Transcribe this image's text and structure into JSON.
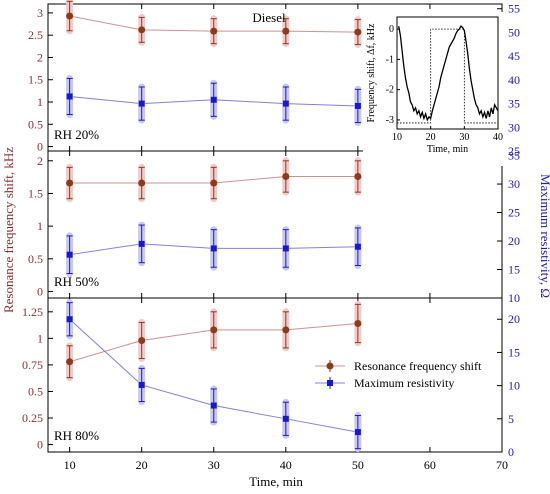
{
  "colors": {
    "resonance": "#8b3a1a",
    "resonance_line": "#d09090",
    "resonance_glow": "#f3caca",
    "resistivity": "#1818d0",
    "resistivity_line": "#8080e0",
    "resistivity_glow": "#c8c8f0",
    "left_axis": "#8b2f2f",
    "right_axis": "#2020b0"
  },
  "figure": {
    "x_label": "Time, min",
    "y_left_label": "Resonance frequency shift, kHz",
    "y_right_label": "Maximum resistivity, Ω",
    "gas_label": "Diesel",
    "legend": {
      "series1": "Resonance frequency shift",
      "series2": "Maximum resistivity"
    }
  },
  "chart_data": [
    {
      "type": "line",
      "panel_label": "RH 20%",
      "x": [
        10,
        20,
        30,
        40,
        50
      ],
      "xlim": [
        7,
        70
      ],
      "ylim_left": [
        -0.1,
        3.2
      ],
      "ylim_right": [
        25,
        56
      ],
      "left_ticks": [
        0,
        0.5,
        1,
        1.5,
        2,
        2.5,
        3
      ],
      "right_ticks": [
        25,
        30,
        35,
        40,
        45,
        50,
        55
      ],
      "series": [
        {
          "name": "Resonance frequency shift",
          "axis": "left",
          "values": [
            2.93,
            2.62,
            2.59,
            2.59,
            2.57
          ],
          "err": [
            0.33,
            0.28,
            0.28,
            0.28,
            0.28
          ]
        },
        {
          "name": "Maximum resistivity",
          "axis": "right",
          "values": [
            36.5,
            35.0,
            35.8,
            35.0,
            34.5
          ],
          "err": [
            3.8,
            3.5,
            3.5,
            3.5,
            3.5
          ]
        }
      ]
    },
    {
      "type": "line",
      "panel_label": "RH 50%",
      "x": [
        10,
        20,
        30,
        40,
        50
      ],
      "xlim": [
        7,
        70
      ],
      "ylim_left": [
        -0.1,
        2.15
      ],
      "ylim_right": [
        10,
        35.8
      ],
      "left_ticks": [
        0,
        0.5,
        1,
        1.5,
        2
      ],
      "right_ticks": [
        10,
        15,
        20,
        25,
        30,
        35
      ],
      "series": [
        {
          "name": "Resonance frequency shift",
          "axis": "left",
          "values": [
            1.66,
            1.66,
            1.66,
            1.76,
            1.76
          ],
          "err": [
            0.24,
            0.24,
            0.24,
            0.24,
            0.24
          ]
        },
        {
          "name": "Maximum resistivity",
          "axis": "right",
          "values": [
            17.6,
            19.5,
            18.7,
            18.7,
            19.0
          ],
          "err": [
            3.3,
            3.3,
            3.3,
            3.3,
            3.3
          ]
        }
      ]
    },
    {
      "type": "line",
      "panel_label": "RH 80%",
      "x": [
        10,
        20,
        30,
        40,
        50
      ],
      "xlim": [
        7,
        70
      ],
      "ylim_left": [
        -0.07,
        1.38
      ],
      "ylim_right": [
        0,
        23.2
      ],
      "left_ticks": [
        0,
        0.25,
        0.5,
        0.75,
        1,
        1.25
      ],
      "right_ticks": [
        0,
        5,
        10,
        15,
        20
      ],
      "series": [
        {
          "name": "Resonance frequency shift",
          "axis": "left",
          "values": [
            0.78,
            0.98,
            1.08,
            1.08,
            1.14
          ],
          "err": [
            0.15,
            0.17,
            0.17,
            0.17,
            0.18
          ]
        },
        {
          "name": "Maximum resistivity",
          "axis": "right",
          "values": [
            20.0,
            10.1,
            7.0,
            5.0,
            3.0
          ],
          "err": [
            2.5,
            2.5,
            2.5,
            2.5,
            2.5
          ]
        }
      ]
    },
    {
      "type": "line",
      "role": "inset",
      "xlabel": "Time, min",
      "ylabel": "Frequency shift, Δf, kHz",
      "xlim": [
        10,
        40
      ],
      "ylim": [
        -3.3,
        0.4
      ],
      "x_ticks": [
        10,
        20,
        30,
        40
      ],
      "y_ticks": [
        0,
        -1,
        -2,
        -3
      ],
      "dotted_box": {
        "x_from": 20,
        "x_to": 30,
        "y_from": -3.1,
        "y_to": 0
      },
      "series": [
        {
          "name": "",
          "x": [
            10.5,
            11,
            11.5,
            12,
            12.5,
            13,
            13.5,
            14,
            14.5,
            15,
            15.5,
            16,
            16.5,
            17,
            17.5,
            18,
            18.5,
            19,
            19.5,
            20,
            20.5,
            21,
            21.5,
            22,
            22.5,
            23,
            23.5,
            24,
            24.5,
            25,
            25.5,
            26,
            26.5,
            27,
            27.5,
            28,
            28.5,
            29,
            29.5,
            30,
            30.5,
            31,
            31.5,
            32,
            32.5,
            33,
            33.5,
            34,
            34.5,
            35,
            35.5,
            36,
            36.5,
            37,
            37.5,
            38,
            38.5,
            39,
            39.5,
            40
          ],
          "values": [
            0.1,
            -0.2,
            -0.7,
            -1.2,
            -1.6,
            -1.9,
            -2.1,
            -2.4,
            -2.5,
            -2.7,
            -2.6,
            -2.8,
            -2.7,
            -2.9,
            -2.75,
            -2.95,
            -2.8,
            -3.0,
            -2.9,
            -2.95,
            -2.7,
            -2.5,
            -2.3,
            -2.1,
            -1.9,
            -1.6,
            -1.4,
            -1.2,
            -1.0,
            -0.8,
            -0.6,
            -0.5,
            -0.4,
            -0.3,
            -0.15,
            -0.05,
            0.0,
            0.1,
            0.05,
            -0.05,
            -0.4,
            -0.8,
            -1.3,
            -1.7,
            -2.0,
            -2.3,
            -2.5,
            -2.6,
            -2.8,
            -2.7,
            -2.9,
            -2.75,
            -2.95,
            -2.7,
            -2.9,
            -2.6,
            -2.8,
            -2.5,
            -2.6,
            -2.7
          ]
        }
      ]
    }
  ]
}
